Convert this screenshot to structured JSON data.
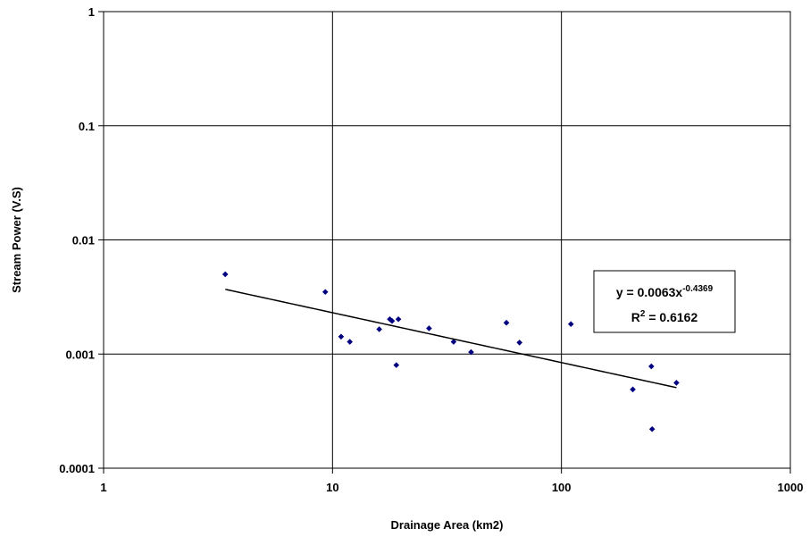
{
  "chart_data": {
    "type": "scatter",
    "xlabel": "Drainage Area (km2)",
    "ylabel": "Stream Power (V.S)",
    "x_scale": "log",
    "y_scale": "log",
    "xlim": [
      1,
      1000
    ],
    "ylim": [
      0.0001,
      1
    ],
    "x_ticks": [
      "1",
      "10",
      "100",
      "1000"
    ],
    "y_ticks": [
      "0.0001",
      "0.001",
      "0.01",
      "0.1",
      "1"
    ],
    "grid": true,
    "legend": "none",
    "marker_color": "#000080",
    "trendline_color": "#000000",
    "series": [
      {
        "points": [
          {
            "x": 3.4,
            "y": 0.005
          },
          {
            "x": 9.3,
            "y": 0.0035
          },
          {
            "x": 10.9,
            "y": 0.00142
          },
          {
            "x": 11.9,
            "y": 0.00128
          },
          {
            "x": 16.0,
            "y": 0.00165
          },
          {
            "x": 17.8,
            "y": 0.00202
          },
          {
            "x": 18.2,
            "y": 0.00195
          },
          {
            "x": 19.4,
            "y": 0.00202
          },
          {
            "x": 19.0,
            "y": 0.0008
          },
          {
            "x": 26.4,
            "y": 0.00168
          },
          {
            "x": 33.8,
            "y": 0.00128
          },
          {
            "x": 40.3,
            "y": 0.00104
          },
          {
            "x": 57.5,
            "y": 0.00188
          },
          {
            "x": 65.6,
            "y": 0.00126
          },
          {
            "x": 110.0,
            "y": 0.00183
          },
          {
            "x": 205.0,
            "y": 0.00049
          },
          {
            "x": 247.0,
            "y": 0.00078
          },
          {
            "x": 249.0,
            "y": 0.00022
          },
          {
            "x": 318.0,
            "y": 0.00056
          }
        ]
      }
    ],
    "trendline": {
      "type": "power",
      "a": 0.0063,
      "b": -0.4369,
      "x_range": [
        3.4,
        318
      ],
      "equation_prefix": "y = 0.0063x",
      "equation_exponent": "-0.4369",
      "r2_prefix": "R",
      "r2_exponent": "2",
      "r2_suffix": " = 0.6162"
    }
  }
}
